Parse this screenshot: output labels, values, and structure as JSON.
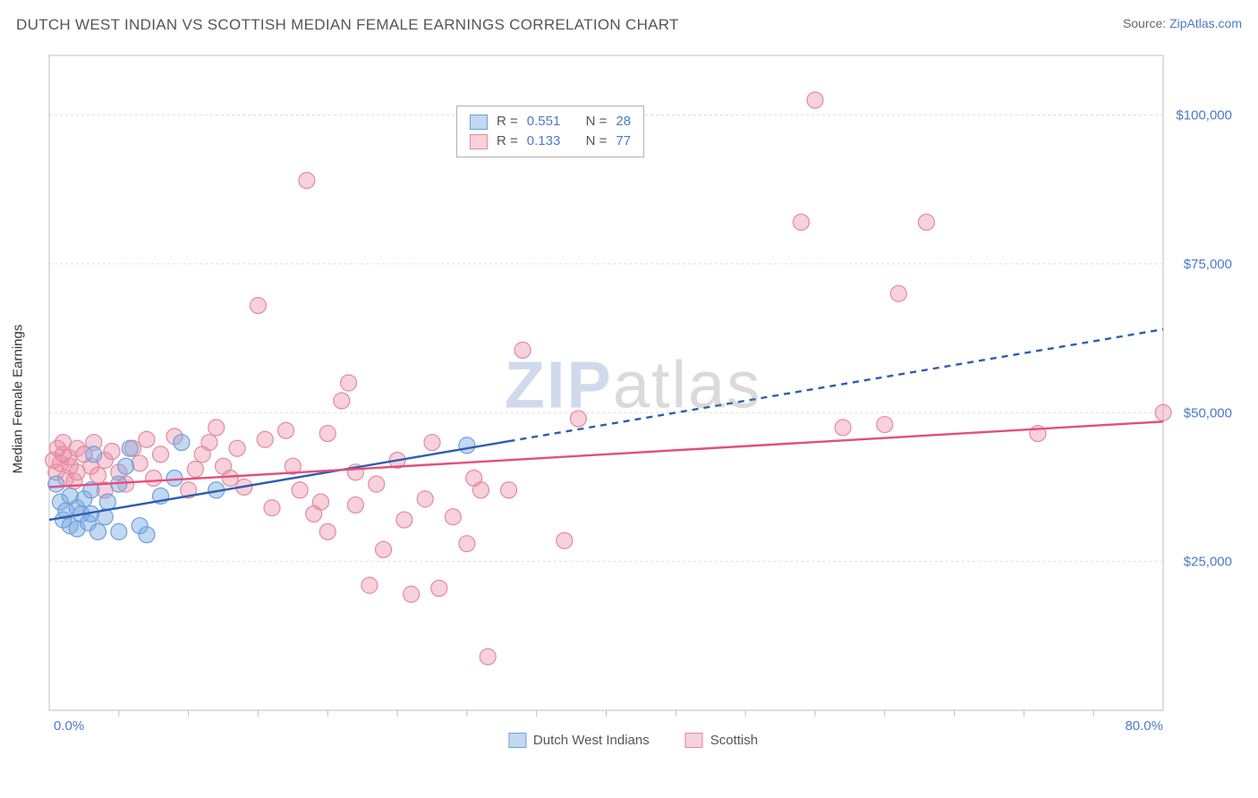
{
  "header": {
    "title": "DUTCH WEST INDIAN VS SCOTTISH MEDIAN FEMALE EARNINGS CORRELATION CHART",
    "source_label": "Source:",
    "source_name": "ZipAtlas.com"
  },
  "chart": {
    "type": "scatter",
    "ylabel": "Median Female Earnings",
    "xlim": [
      0,
      80
    ],
    "ylim": [
      0,
      110000
    ],
    "x_ticks_major": [
      0,
      80
    ],
    "x_tick_labels": [
      "0.0%",
      "80.0%"
    ],
    "x_minor_ticks": [
      5,
      10,
      15,
      20,
      25,
      30,
      35,
      40,
      45,
      50,
      55,
      60,
      65,
      70,
      75
    ],
    "y_gridlines": [
      25000,
      50000,
      75000,
      100000
    ],
    "y_tick_labels": [
      "$25,000",
      "$50,000",
      "$75,000",
      "$100,000"
    ],
    "background_color": "#ffffff",
    "grid_color": "#dddddd",
    "grid_dash": "3,3",
    "axis_color": "#bfbfbf",
    "plot_border_color": "#bfbfbf",
    "series": [
      {
        "name": "Dutch West Indians",
        "fill": "rgba(122,168,224,0.45)",
        "stroke": "#6d9fdc",
        "marker_r": 9,
        "trend_color": "#2b5fb0",
        "trend_width": 2.4,
        "trend_solid_xmax": 33,
        "trend": {
          "x0": 0,
          "y0": 32000,
          "x1": 80,
          "y1": 64000
        },
        "r_value": "0.551",
        "n_value": "28",
        "points": [
          [
            0.5,
            38000
          ],
          [
            0.8,
            35000
          ],
          [
            1,
            32000
          ],
          [
            1.2,
            33500
          ],
          [
            1.5,
            31000
          ],
          [
            1.5,
            36000
          ],
          [
            2,
            30500
          ],
          [
            2,
            34000
          ],
          [
            2.3,
            33000
          ],
          [
            2.5,
            35500
          ],
          [
            2.8,
            31500
          ],
          [
            3,
            33000
          ],
          [
            3,
            37000
          ],
          [
            3.2,
            43000
          ],
          [
            3.5,
            30000
          ],
          [
            4,
            32500
          ],
          [
            4.2,
            35000
          ],
          [
            5,
            30000
          ],
          [
            5,
            38000
          ],
          [
            5.5,
            41000
          ],
          [
            5.8,
            44000
          ],
          [
            6.5,
            31000
          ],
          [
            7,
            29500
          ],
          [
            8,
            36000
          ],
          [
            9,
            39000
          ],
          [
            9.5,
            45000
          ],
          [
            12,
            37000
          ],
          [
            30,
            44500
          ]
        ]
      },
      {
        "name": "Scottish",
        "fill": "rgba(235,140,165,0.40)",
        "stroke": "#e589a1",
        "marker_r": 9,
        "trend_color": "#e24f7a",
        "trend_width": 2.4,
        "trend_solid_xmax": 80,
        "trend": {
          "x0": 0,
          "y0": 37500,
          "x1": 80,
          "y1": 48500
        },
        "r_value": "0.133",
        "n_value": "77",
        "points": [
          [
            0.3,
            42000
          ],
          [
            0.5,
            40000
          ],
          [
            0.6,
            44000
          ],
          [
            0.8,
            41500
          ],
          [
            1,
            43000
          ],
          [
            1,
            45000
          ],
          [
            1.2,
            39000
          ],
          [
            1.4,
            42500
          ],
          [
            1.5,
            41000
          ],
          [
            1.8,
            38500
          ],
          [
            2,
            44000
          ],
          [
            2,
            40000
          ],
          [
            2.5,
            43000
          ],
          [
            3,
            41000
          ],
          [
            3.2,
            45000
          ],
          [
            3.5,
            39500
          ],
          [
            4,
            42000
          ],
          [
            4,
            37000
          ],
          [
            4.5,
            43500
          ],
          [
            5,
            40000
          ],
          [
            5.5,
            38000
          ],
          [
            6,
            44000
          ],
          [
            6.5,
            41500
          ],
          [
            7,
            45500
          ],
          [
            7.5,
            39000
          ],
          [
            8,
            43000
          ],
          [
            9,
            46000
          ],
          [
            10,
            37000
          ],
          [
            10.5,
            40500
          ],
          [
            11,
            43000
          ],
          [
            11.5,
            45000
          ],
          [
            12,
            47500
          ],
          [
            12.5,
            41000
          ],
          [
            13,
            39000
          ],
          [
            13.5,
            44000
          ],
          [
            14,
            37500
          ],
          [
            15,
            68000
          ],
          [
            15.5,
            45500
          ],
          [
            16,
            34000
          ],
          [
            17,
            47000
          ],
          [
            17.5,
            41000
          ],
          [
            18,
            37000
          ],
          [
            18.5,
            89000
          ],
          [
            19,
            33000
          ],
          [
            19.5,
            35000
          ],
          [
            20,
            46500
          ],
          [
            20,
            30000
          ],
          [
            21,
            52000
          ],
          [
            21.5,
            55000
          ],
          [
            22,
            34500
          ],
          [
            22,
            40000
          ],
          [
            23,
            21000
          ],
          [
            23.5,
            38000
          ],
          [
            24,
            27000
          ],
          [
            25,
            42000
          ],
          [
            25.5,
            32000
          ],
          [
            26,
            19500
          ],
          [
            27,
            35500
          ],
          [
            27.5,
            45000
          ],
          [
            28,
            20500
          ],
          [
            29,
            32500
          ],
          [
            30,
            28000
          ],
          [
            30.5,
            39000
          ],
          [
            31,
            37000
          ],
          [
            31.5,
            9000
          ],
          [
            33,
            37000
          ],
          [
            34,
            60500
          ],
          [
            37,
            28500
          ],
          [
            38,
            49000
          ],
          [
            54,
            82000
          ],
          [
            55,
            102500
          ],
          [
            57,
            47500
          ],
          [
            60,
            48000
          ],
          [
            61,
            70000
          ],
          [
            63,
            82000
          ],
          [
            71,
            46500
          ],
          [
            80,
            50000
          ]
        ]
      }
    ],
    "legend": {
      "items": [
        {
          "label": "Dutch West Indians",
          "fill": "rgba(122,168,224,0.45)",
          "stroke": "#6d9fdc"
        },
        {
          "label": "Scottish",
          "fill": "rgba(235,140,165,0.40)",
          "stroke": "#e589a1"
        }
      ]
    },
    "info_box": {
      "r_label": "R =",
      "n_label": "N ="
    },
    "watermark": {
      "part1": "ZIP",
      "part2": "atlas"
    }
  }
}
